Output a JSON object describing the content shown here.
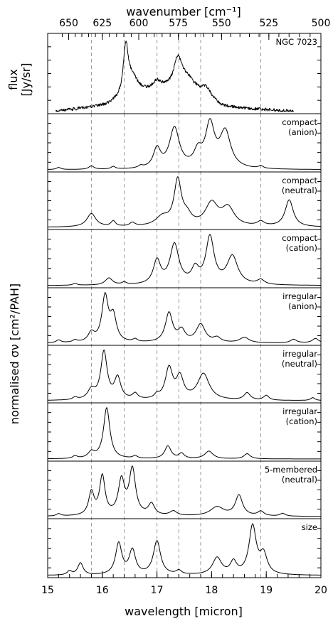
{
  "chart_data": {
    "type": "line",
    "x_axis": {
      "label": "wavelength [micron]",
      "range": [
        15,
        20
      ],
      "tick_labels": [
        "15",
        "16",
        "17",
        "18",
        "19",
        "20"
      ]
    },
    "top_axis": {
      "label": "wavenumber [cm⁻¹]",
      "tick_labels": [
        "650",
        "625",
        "600",
        "575",
        "550",
        "525",
        "500"
      ],
      "tick_values": [
        650,
        625,
        600,
        575,
        550,
        525,
        500
      ]
    },
    "y_axis_labels": {
      "top_panel": "flux [Jy/sr]",
      "lower_panels": "normalised σν [cm²/PAH]"
    },
    "reference_lines": [
      15.8,
      16.4,
      17.0,
      17.4,
      17.8,
      18.9
    ],
    "grid": false,
    "panels": [
      {
        "name": "NGC 7023",
        "peaks": [
          {
            "x": 16.43,
            "h": 1.0,
            "w": 0.055
          },
          {
            "x": 16.55,
            "h": 0.35,
            "w": 0.12
          },
          {
            "x": 17.0,
            "h": 0.18,
            "w": 0.1
          },
          {
            "x": 17.38,
            "h": 0.6,
            "w": 0.09
          },
          {
            "x": 17.55,
            "h": 0.3,
            "w": 0.18
          },
          {
            "x": 17.9,
            "h": 0.22,
            "w": 0.12
          }
        ],
        "baseline": [
          [
            15.15,
            0.0
          ],
          [
            16.1,
            0.12
          ],
          [
            16.3,
            0.2
          ],
          [
            16.7,
            0.35
          ],
          [
            17.2,
            0.4
          ],
          [
            17.7,
            0.3
          ],
          [
            18.2,
            0.08
          ],
          [
            19.5,
            0.0
          ]
        ],
        "x_range": [
          15.15,
          19.5
        ],
        "noise": true
      },
      {
        "name": "compact (anion)",
        "peaks": [
          {
            "x": 15.2,
            "h": 0.05,
            "w": 0.05
          },
          {
            "x": 15.8,
            "h": 0.08,
            "w": 0.06
          },
          {
            "x": 16.2,
            "h": 0.06,
            "w": 0.05
          },
          {
            "x": 16.7,
            "h": 0.05,
            "w": 0.05
          },
          {
            "x": 17.0,
            "h": 0.45,
            "w": 0.08
          },
          {
            "x": 17.32,
            "h": 0.95,
            "w": 0.11
          },
          {
            "x": 17.75,
            "h": 0.35,
            "w": 0.09
          },
          {
            "x": 17.97,
            "h": 1.0,
            "w": 0.1
          },
          {
            "x": 18.25,
            "h": 0.85,
            "w": 0.12
          },
          {
            "x": 18.9,
            "h": 0.06,
            "w": 0.05
          }
        ]
      },
      {
        "name": "compact (neutral)",
        "peaks": [
          {
            "x": 15.8,
            "h": 0.3,
            "w": 0.1
          },
          {
            "x": 16.2,
            "h": 0.12,
            "w": 0.05
          },
          {
            "x": 16.55,
            "h": 0.08,
            "w": 0.06
          },
          {
            "x": 17.1,
            "h": 0.2,
            "w": 0.15
          },
          {
            "x": 17.38,
            "h": 1.0,
            "w": 0.08
          },
          {
            "x": 17.55,
            "h": 0.2,
            "w": 0.1
          },
          {
            "x": 18.0,
            "h": 0.5,
            "w": 0.14
          },
          {
            "x": 18.3,
            "h": 0.4,
            "w": 0.14
          },
          {
            "x": 18.9,
            "h": 0.1,
            "w": 0.08
          },
          {
            "x": 19.42,
            "h": 0.6,
            "w": 0.09
          }
        ]
      },
      {
        "name": "compact (cation)",
        "peaks": [
          {
            "x": 15.5,
            "h": 0.04,
            "w": 0.05
          },
          {
            "x": 16.12,
            "h": 0.15,
            "w": 0.08
          },
          {
            "x": 16.4,
            "h": 0.05,
            "w": 0.05
          },
          {
            "x": 17.0,
            "h": 0.5,
            "w": 0.08
          },
          {
            "x": 17.32,
            "h": 0.85,
            "w": 0.1
          },
          {
            "x": 17.7,
            "h": 0.3,
            "w": 0.08
          },
          {
            "x": 17.97,
            "h": 1.0,
            "w": 0.09
          },
          {
            "x": 18.38,
            "h": 0.6,
            "w": 0.12
          },
          {
            "x": 18.9,
            "h": 0.1,
            "w": 0.08
          }
        ]
      },
      {
        "name": "irregular (anion)",
        "peaks": [
          {
            "x": 15.2,
            "h": 0.06,
            "w": 0.05
          },
          {
            "x": 15.5,
            "h": 0.05,
            "w": 0.05
          },
          {
            "x": 15.8,
            "h": 0.2,
            "w": 0.07
          },
          {
            "x": 16.05,
            "h": 1.0,
            "w": 0.07
          },
          {
            "x": 16.2,
            "h": 0.55,
            "w": 0.07
          },
          {
            "x": 16.6,
            "h": 0.06,
            "w": 0.05
          },
          {
            "x": 17.22,
            "h": 0.65,
            "w": 0.08
          },
          {
            "x": 17.45,
            "h": 0.25,
            "w": 0.08
          },
          {
            "x": 17.8,
            "h": 0.4,
            "w": 0.1
          },
          {
            "x": 18.1,
            "h": 0.1,
            "w": 0.08
          },
          {
            "x": 18.6,
            "h": 0.12,
            "w": 0.1
          },
          {
            "x": 19.5,
            "h": 0.08,
            "w": 0.07
          },
          {
            "x": 19.9,
            "h": 0.1,
            "w": 0.07
          }
        ]
      },
      {
        "name": "irregular (neutral)",
        "peaks": [
          {
            "x": 15.5,
            "h": 0.05,
            "w": 0.05
          },
          {
            "x": 15.8,
            "h": 0.2,
            "w": 0.08
          },
          {
            "x": 16.03,
            "h": 1.0,
            "w": 0.07
          },
          {
            "x": 16.28,
            "h": 0.45,
            "w": 0.07
          },
          {
            "x": 16.6,
            "h": 0.12,
            "w": 0.06
          },
          {
            "x": 17.0,
            "h": 0.08,
            "w": 0.05
          },
          {
            "x": 17.22,
            "h": 0.65,
            "w": 0.08
          },
          {
            "x": 17.42,
            "h": 0.45,
            "w": 0.08
          },
          {
            "x": 17.85,
            "h": 0.55,
            "w": 0.13
          },
          {
            "x": 18.65,
            "h": 0.15,
            "w": 0.07
          },
          {
            "x": 19.0,
            "h": 0.1,
            "w": 0.06
          },
          {
            "x": 19.85,
            "h": 0.06,
            "w": 0.05
          }
        ]
      },
      {
        "name": "irregular (cation)",
        "peaks": [
          {
            "x": 15.5,
            "h": 0.05,
            "w": 0.05
          },
          {
            "x": 15.8,
            "h": 0.12,
            "w": 0.07
          },
          {
            "x": 16.08,
            "h": 1.0,
            "w": 0.07
          },
          {
            "x": 16.6,
            "h": 0.05,
            "w": 0.05
          },
          {
            "x": 17.2,
            "h": 0.25,
            "w": 0.07
          },
          {
            "x": 17.45,
            "h": 0.1,
            "w": 0.06
          },
          {
            "x": 17.95,
            "h": 0.15,
            "w": 0.09
          },
          {
            "x": 18.65,
            "h": 0.1,
            "w": 0.07
          }
        ]
      },
      {
        "name": "5-membered (neutral)",
        "peaks": [
          {
            "x": 15.2,
            "h": 0.05,
            "w": 0.05
          },
          {
            "x": 15.8,
            "h": 0.5,
            "w": 0.06
          },
          {
            "x": 16.0,
            "h": 0.85,
            "w": 0.06
          },
          {
            "x": 16.35,
            "h": 0.75,
            "w": 0.07
          },
          {
            "x": 16.55,
            "h": 1.0,
            "w": 0.07
          },
          {
            "x": 16.9,
            "h": 0.25,
            "w": 0.07
          },
          {
            "x": 17.3,
            "h": 0.1,
            "w": 0.08
          },
          {
            "x": 18.1,
            "h": 0.2,
            "w": 0.15
          },
          {
            "x": 18.5,
            "h": 0.45,
            "w": 0.08
          },
          {
            "x": 18.9,
            "h": 0.1,
            "w": 0.07
          },
          {
            "x": 19.3,
            "h": 0.06,
            "w": 0.06
          }
        ]
      },
      {
        "name": "size",
        "peaks": [
          {
            "x": 15.4,
            "h": 0.08,
            "w": 0.05
          },
          {
            "x": 15.6,
            "h": 0.25,
            "w": 0.06
          },
          {
            "x": 16.3,
            "h": 0.65,
            "w": 0.07
          },
          {
            "x": 16.55,
            "h": 0.5,
            "w": 0.07
          },
          {
            "x": 17.0,
            "h": 0.7,
            "w": 0.08
          },
          {
            "x": 17.4,
            "h": 0.08,
            "w": 0.06
          },
          {
            "x": 18.1,
            "h": 0.35,
            "w": 0.1
          },
          {
            "x": 18.4,
            "h": 0.25,
            "w": 0.07
          },
          {
            "x": 18.75,
            "h": 1.0,
            "w": 0.08
          },
          {
            "x": 18.95,
            "h": 0.4,
            "w": 0.08
          }
        ]
      }
    ]
  },
  "labels": {
    "top_axis_title": "wavenumber [cm⁻¹]",
    "bottom_axis_title": "wavelength [micron]",
    "flux_axis_title_line1": "flux",
    "flux_axis_title_line2": "[Jy/sr]",
    "sigma_axis_title": "normalised σν [cm²/PAH]",
    "panel_names": [
      [
        "NGC 7023"
      ],
      [
        "compact",
        "(anion)"
      ],
      [
        "compact",
        "(neutral)"
      ],
      [
        "compact",
        "(cation)"
      ],
      [
        "irregular",
        "(anion)"
      ],
      [
        "irregular",
        "(neutral)"
      ],
      [
        "irregular",
        "(cation)"
      ],
      [
        "5-membered",
        "(neutral)"
      ],
      [
        "size"
      ]
    ]
  }
}
